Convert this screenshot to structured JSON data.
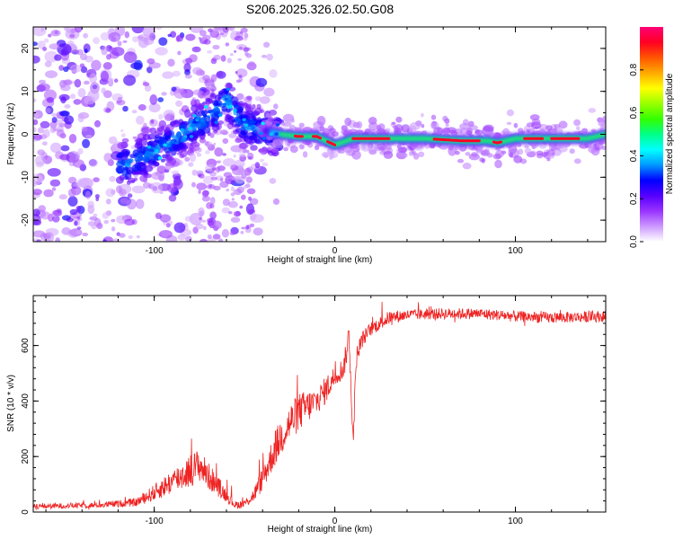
{
  "title": "S206.2025.326.02.50.G08",
  "chart_data": [
    {
      "type": "heatmap",
      "name": "spectrogram",
      "xlabel": "Height of straight line (km)",
      "ylabel": "Frequency (Hz)",
      "xlim": [
        -167,
        150
      ],
      "ylim": [
        -25,
        25
      ],
      "xticks": [
        -100,
        0,
        100
      ],
      "xtick_labels": [
        "-100",
        "0",
        "100"
      ],
      "yticks": [
        -20,
        -10,
        0,
        10,
        20
      ],
      "ytick_labels": [
        "-20",
        "-10",
        "0",
        "10",
        "20"
      ],
      "ridge": {
        "x": [
          -115,
          -100,
          -85,
          -70,
          -60,
          -50,
          -40,
          -30,
          -20,
          -10,
          0,
          10,
          30,
          50,
          70,
          85,
          90,
          100,
          120,
          140,
          150
        ],
        "y": [
          -7,
          -4,
          0,
          4,
          8,
          2,
          1,
          0,
          -0.5,
          -0.5,
          -2.5,
          -1,
          -1,
          -1,
          -1.5,
          -1.5,
          -2,
          -1,
          -1,
          -1,
          0
        ]
      },
      "colorbar": {
        "label": "Normalized spectral amplitude",
        "range": [
          0,
          1
        ],
        "ticks": [
          0.0,
          0.2,
          0.4,
          0.6,
          0.8
        ],
        "tick_labels": [
          "0.0",
          "0.2",
          "0.4",
          "0.6",
          "0.8"
        ],
        "colors": [
          "#ffffff",
          "#cc99ff",
          "#9933ff",
          "#5500ff",
          "#0000ff",
          "#0099ff",
          "#00ffff",
          "#00ff88",
          "#33ff00",
          "#99ff00",
          "#ffff00",
          "#ffaa00",
          "#ff5500",
          "#ff0022",
          "#ff0077"
        ]
      }
    },
    {
      "type": "line",
      "name": "snr",
      "xlabel": "Height of straight line (km)",
      "ylabel": "SNR (10 * v/v)",
      "xlim": [
        -167,
        150
      ],
      "ylim": [
        0,
        780
      ],
      "xticks": [
        -100,
        0,
        100
      ],
      "xtick_labels": [
        "-100",
        "0",
        "100"
      ],
      "yticks": [
        0,
        200,
        400,
        600
      ],
      "ytick_labels": [
        "0",
        "200",
        "400",
        "600"
      ],
      "color": "#ee2222",
      "series_envelope": {
        "x": [
          -167,
          -130,
          -110,
          -100,
          -90,
          -80,
          -75,
          -70,
          -60,
          -55,
          -50,
          -45,
          -40,
          -35,
          -30,
          -25,
          -20,
          -15,
          -10,
          -5,
          0,
          5,
          8,
          10,
          12,
          15,
          20,
          25,
          30,
          40,
          60,
          80,
          100,
          120,
          150
        ],
        "y": [
          20,
          25,
          35,
          70,
          110,
          150,
          170,
          130,
          60,
          25,
          30,
          60,
          120,
          200,
          270,
          320,
          360,
          380,
          400,
          440,
          490,
          520,
          640,
          250,
          560,
          620,
          660,
          680,
          700,
          710,
          715,
          715,
          705,
          700,
          705
        ],
        "noise": [
          10,
          10,
          15,
          30,
          45,
          60,
          60,
          50,
          25,
          15,
          15,
          25,
          45,
          60,
          70,
          70,
          70,
          60,
          50,
          50,
          40,
          40,
          60,
          40,
          40,
          30,
          25,
          25,
          25,
          20,
          20,
          20,
          20,
          20,
          20
        ]
      }
    }
  ]
}
